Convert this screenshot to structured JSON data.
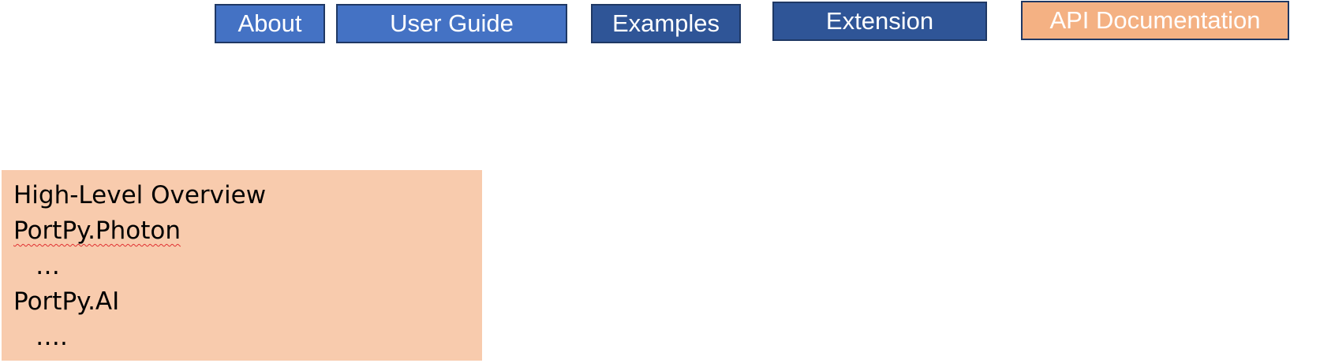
{
  "nav": {
    "about": "About",
    "user_guide": "User Guide",
    "examples": "Examples",
    "extension": "Extension",
    "api_documentation": "API Documentation"
  },
  "dropdown": {
    "items": [
      {
        "label": "High-Level Overview",
        "level": 0
      },
      {
        "label": "PortPy.Photon",
        "level": 0
      },
      {
        "label": "…",
        "level": 1
      },
      {
        "label": "PortPy.AI",
        "level": 0
      },
      {
        "label": "….",
        "level": 1
      }
    ]
  },
  "colors": {
    "nav_light_blue": "#4472c4",
    "nav_dark_blue": "#2f5597",
    "nav_active_orange": "#f4b183",
    "dropdown_background": "#f8cbad",
    "border": "#1f3864"
  }
}
